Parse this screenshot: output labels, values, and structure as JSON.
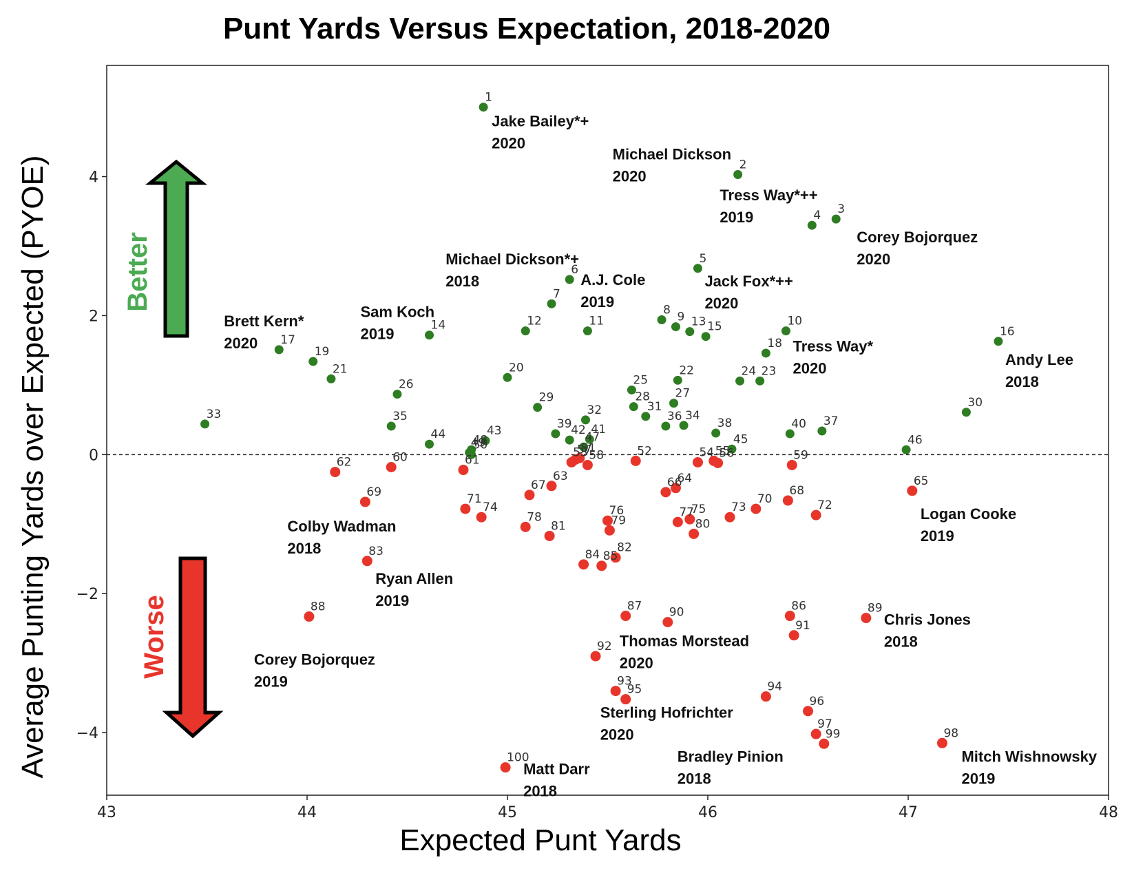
{
  "chart_data": {
    "type": "scatter",
    "title": "Punt Yards Versus Expectation, 2018-2020",
    "xlabel": "Expected Punt Yards",
    "ylabel": "Average Punting Yards over Expected (PYOE)",
    "xlim": [
      43,
      48
    ],
    "ylim": [
      -4.9,
      5.6
    ],
    "xticks": [
      43,
      44,
      45,
      46,
      47,
      48
    ],
    "yticks": [
      -4,
      -2,
      0,
      2,
      4
    ],
    "ytick_labels": [
      "−4",
      "−2",
      "0",
      "2",
      "4"
    ],
    "reference_line_y": 0,
    "grid": false,
    "colors": {
      "positive": "#2e7d22",
      "negative": "#e8352b",
      "better": "#4caa52",
      "worse": "#e8352b"
    },
    "better_label": "Better",
    "worse_label": "Worse",
    "points": [
      {
        "rank": 1,
        "x": 44.88,
        "y": 5.0
      },
      {
        "rank": 2,
        "x": 46.15,
        "y": 4.03
      },
      {
        "rank": 3,
        "x": 46.64,
        "y": 3.39
      },
      {
        "rank": 4,
        "x": 46.52,
        "y": 3.3
      },
      {
        "rank": 5,
        "x": 45.95,
        "y": 2.68
      },
      {
        "rank": 6,
        "x": 45.31,
        "y": 2.52
      },
      {
        "rank": 7,
        "x": 45.22,
        "y": 2.17
      },
      {
        "rank": 8,
        "x": 45.77,
        "y": 1.94
      },
      {
        "rank": 9,
        "x": 45.84,
        "y": 1.84
      },
      {
        "rank": 10,
        "x": 46.39,
        "y": 1.78
      },
      {
        "rank": 11,
        "x": 45.4,
        "y": 1.78
      },
      {
        "rank": 12,
        "x": 45.09,
        "y": 1.78
      },
      {
        "rank": 13,
        "x": 45.91,
        "y": 1.77
      },
      {
        "rank": 14,
        "x": 44.61,
        "y": 1.72
      },
      {
        "rank": 15,
        "x": 45.99,
        "y": 1.7
      },
      {
        "rank": 16,
        "x": 47.45,
        "y": 1.63
      },
      {
        "rank": 17,
        "x": 43.86,
        "y": 1.51
      },
      {
        "rank": 18,
        "x": 46.29,
        "y": 1.46
      },
      {
        "rank": 19,
        "x": 44.03,
        "y": 1.34
      },
      {
        "rank": 20,
        "x": 45.0,
        "y": 1.11
      },
      {
        "rank": 21,
        "x": 44.12,
        "y": 1.09
      },
      {
        "rank": 22,
        "x": 45.85,
        "y": 1.07
      },
      {
        "rank": 23,
        "x": 46.26,
        "y": 1.06
      },
      {
        "rank": 24,
        "x": 46.16,
        "y": 1.06
      },
      {
        "rank": 25,
        "x": 45.62,
        "y": 0.93
      },
      {
        "rank": 26,
        "x": 44.45,
        "y": 0.87
      },
      {
        "rank": 27,
        "x": 45.83,
        "y": 0.74
      },
      {
        "rank": 28,
        "x": 45.63,
        "y": 0.69
      },
      {
        "rank": 29,
        "x": 45.15,
        "y": 0.68
      },
      {
        "rank": 30,
        "x": 47.29,
        "y": 0.61
      },
      {
        "rank": 31,
        "x": 45.69,
        "y": 0.55
      },
      {
        "rank": 32,
        "x": 45.39,
        "y": 0.5
      },
      {
        "rank": 33,
        "x": 43.49,
        "y": 0.44
      },
      {
        "rank": 34,
        "x": 45.88,
        "y": 0.42
      },
      {
        "rank": 35,
        "x": 44.42,
        "y": 0.41
      },
      {
        "rank": 36,
        "x": 45.79,
        "y": 0.41
      },
      {
        "rank": 37,
        "x": 46.57,
        "y": 0.34
      },
      {
        "rank": 38,
        "x": 46.04,
        "y": 0.31
      },
      {
        "rank": 39,
        "x": 45.24,
        "y": 0.3
      },
      {
        "rank": 40,
        "x": 46.41,
        "y": 0.3
      },
      {
        "rank": 41,
        "x": 45.41,
        "y": 0.22
      },
      {
        "rank": 42,
        "x": 45.31,
        "y": 0.21
      },
      {
        "rank": 43,
        "x": 44.89,
        "y": 0.2
      },
      {
        "rank": 44,
        "x": 44.61,
        "y": 0.15
      },
      {
        "rank": 45,
        "x": 46.12,
        "y": 0.08
      },
      {
        "rank": 46,
        "x": 46.99,
        "y": 0.07
      },
      {
        "rank": 47,
        "x": 45.38,
        "y": 0.11
      },
      {
        "rank": 48,
        "x": 44.82,
        "y": 0.07
      },
      {
        "rank": 49,
        "x": 44.81,
        "y": 0.03
      },
      {
        "rank": 50,
        "x": 44.82,
        "y": 0.0
      },
      {
        "rank": 51,
        "x": 45.36,
        "y": -0.05
      },
      {
        "rank": 52,
        "x": 45.64,
        "y": -0.09
      },
      {
        "rank": 53,
        "x": 45.32,
        "y": -0.11
      },
      {
        "rank": 54,
        "x": 45.95,
        "y": -0.11
      },
      {
        "rank": 55,
        "x": 46.03,
        "y": -0.09
      },
      {
        "rank": 56,
        "x": 46.05,
        "y": -0.12
      },
      {
        "rank": 57,
        "x": 45.34,
        "y": -0.07
      },
      {
        "rank": 58,
        "x": 45.4,
        "y": -0.15
      },
      {
        "rank": 59,
        "x": 46.42,
        "y": -0.15
      },
      {
        "rank": 60,
        "x": 44.42,
        "y": -0.18
      },
      {
        "rank": 61,
        "x": 44.78,
        "y": -0.22
      },
      {
        "rank": 62,
        "x": 44.14,
        "y": -0.25
      },
      {
        "rank": 63,
        "x": 45.22,
        "y": -0.45
      },
      {
        "rank": 64,
        "x": 45.84,
        "y": -0.48
      },
      {
        "rank": 65,
        "x": 47.02,
        "y": -0.52
      },
      {
        "rank": 66,
        "x": 45.79,
        "y": -0.54
      },
      {
        "rank": 67,
        "x": 45.11,
        "y": -0.58
      },
      {
        "rank": 68,
        "x": 46.4,
        "y": -0.66
      },
      {
        "rank": 69,
        "x": 44.29,
        "y": -0.68
      },
      {
        "rank": 70,
        "x": 46.24,
        "y": -0.78
      },
      {
        "rank": 71,
        "x": 44.79,
        "y": -0.78
      },
      {
        "rank": 72,
        "x": 46.54,
        "y": -0.87
      },
      {
        "rank": 73,
        "x": 46.11,
        "y": -0.9
      },
      {
        "rank": 74,
        "x": 44.87,
        "y": -0.9
      },
      {
        "rank": 75,
        "x": 45.91,
        "y": -0.93
      },
      {
        "rank": 76,
        "x": 45.5,
        "y": -0.95
      },
      {
        "rank": 77,
        "x": 45.85,
        "y": -0.97
      },
      {
        "rank": 78,
        "x": 45.09,
        "y": -1.04
      },
      {
        "rank": 79,
        "x": 45.51,
        "y": -1.09
      },
      {
        "rank": 80,
        "x": 45.93,
        "y": -1.14
      },
      {
        "rank": 81,
        "x": 45.21,
        "y": -1.17
      },
      {
        "rank": 82,
        "x": 45.54,
        "y": -1.48
      },
      {
        "rank": 83,
        "x": 44.3,
        "y": -1.53
      },
      {
        "rank": 84,
        "x": 45.38,
        "y": -1.58
      },
      {
        "rank": 85,
        "x": 45.47,
        "y": -1.6
      },
      {
        "rank": 86,
        "x": 46.41,
        "y": -2.32
      },
      {
        "rank": 87,
        "x": 45.59,
        "y": -2.32
      },
      {
        "rank": 88,
        "x": 44.01,
        "y": -2.33
      },
      {
        "rank": 89,
        "x": 46.79,
        "y": -2.35
      },
      {
        "rank": 90,
        "x": 45.8,
        "y": -2.41
      },
      {
        "rank": 91,
        "x": 46.43,
        "y": -2.6
      },
      {
        "rank": 92,
        "x": 45.44,
        "y": -2.9
      },
      {
        "rank": 93,
        "x": 45.54,
        "y": -3.4
      },
      {
        "rank": 94,
        "x": 46.29,
        "y": -3.48
      },
      {
        "rank": 95,
        "x": 45.59,
        "y": -3.52
      },
      {
        "rank": 96,
        "x": 46.5,
        "y": -3.69
      },
      {
        "rank": 97,
        "x": 46.54,
        "y": -4.02
      },
      {
        "rank": 98,
        "x": 47.17,
        "y": -4.15
      },
      {
        "rank": 99,
        "x": 46.58,
        "y": -4.16
      },
      {
        "rank": 100,
        "x": 44.99,
        "y": -4.5
      }
    ],
    "annotations": [
      {
        "rank": 1,
        "name": "Jake Bailey*+",
        "year": "2020"
      },
      {
        "rank": 2,
        "name": "Michael Dickson",
        "year": "2020"
      },
      {
        "rank": 4,
        "name": "Tress Way*++",
        "year": "2019"
      },
      {
        "rank": 3,
        "name": "Corey Bojorquez",
        "year": "2020"
      },
      {
        "rank": 6,
        "name": "Michael Dickson*+",
        "year": "2018"
      },
      {
        "rank": 6,
        "name": "A.J. Cole",
        "year": "2019"
      },
      {
        "rank": 5,
        "name": "Jack Fox*++",
        "year": "2020"
      },
      {
        "rank": 17,
        "name": "Brett Kern*",
        "year": "2020"
      },
      {
        "rank": 14,
        "name": "Sam Koch",
        "year": "2019"
      },
      {
        "rank": 10,
        "name": "Tress Way*",
        "year": "2020"
      },
      {
        "rank": 16,
        "name": "Andy Lee",
        "year": "2018"
      },
      {
        "rank": 69,
        "name": "Colby Wadman",
        "year": "2018"
      },
      {
        "rank": 65,
        "name": "Logan Cooke",
        "year": "2019"
      },
      {
        "rank": 83,
        "name": "Ryan Allen",
        "year": "2019"
      },
      {
        "rank": 88,
        "name": "Corey Bojorquez",
        "year": "2019"
      },
      {
        "rank": 90,
        "name": "Thomas Morstead",
        "year": "2020"
      },
      {
        "rank": 89,
        "name": "Chris Jones",
        "year": "2018"
      },
      {
        "rank": 95,
        "name": "Sterling Hofrichter",
        "year": "2020"
      },
      {
        "rank": 99,
        "name": "Bradley Pinion",
        "year": "2018"
      },
      {
        "rank": 98,
        "name": "Mitch Wishnowsky",
        "year": "2019"
      },
      {
        "rank": 100,
        "name": "Matt Darr",
        "year": "2018"
      }
    ]
  }
}
